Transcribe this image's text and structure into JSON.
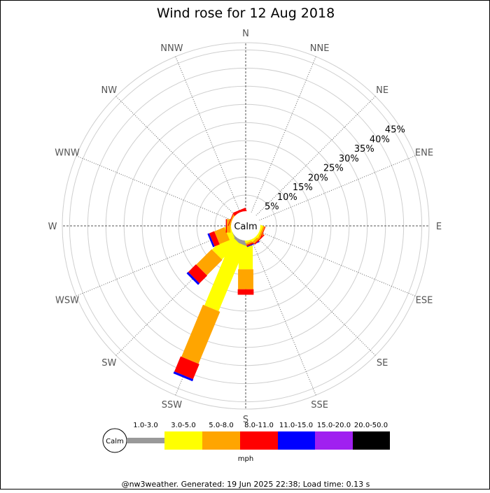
{
  "chart_data": {
    "type": "windrose",
    "title": "Wind rose for 12 Aug 2018",
    "center_label": "Calm",
    "directions": [
      "N",
      "NNE",
      "NE",
      "ENE",
      "E",
      "ESE",
      "SE",
      "SSE",
      "S",
      "SSW",
      "SW",
      "WSW",
      "W",
      "WNW",
      "NW",
      "NNW"
    ],
    "radial_ticks": [
      "5%",
      "10%",
      "15%",
      "20%",
      "25%",
      "30%",
      "35%",
      "40%",
      "45%"
    ],
    "radial_values": [
      5,
      10,
      15,
      20,
      25,
      30,
      35,
      40,
      45
    ],
    "rmax_percent": 47,
    "legend": {
      "calm_label": "Calm",
      "unit": "mph",
      "bins": [
        {
          "label": "1.0-3.0",
          "color": "#999999"
        },
        {
          "label": "3.0-5.0",
          "color": "#ffff00"
        },
        {
          "label": "5.0-8.0",
          "color": "#ffa500"
        },
        {
          "label": "8.0-11.0",
          "color": "#ff0000"
        },
        {
          "label": "11.0-15.0",
          "color": "#0000ff"
        },
        {
          "label": "15.0-20.0",
          "color": "#a020f0"
        },
        {
          "label": "20.0-50.0",
          "color": "#000000"
        }
      ]
    },
    "series": [
      {
        "direction": "S",
        "values": [
          2.0,
          6.5,
          5.5,
          1.5,
          0,
          0,
          0
        ]
      },
      {
        "direction": "SSW",
        "values": [
          1.6,
          19.5,
          15.5,
          4.5,
          0.6,
          0,
          0
        ]
      },
      {
        "direction": "SW",
        "values": [
          1.2,
          6.5,
          6.0,
          3.0,
          0.6,
          0,
          0
        ]
      },
      {
        "direction": "WSW",
        "values": [
          0.6,
          1.5,
          3.0,
          1.5,
          0.5,
          0,
          0
        ]
      },
      {
        "direction": "W",
        "values": [
          0.2,
          0.5,
          1.0,
          0.3,
          0,
          0,
          0
        ]
      },
      {
        "direction": "WNW",
        "values": [
          0.1,
          0.3,
          0.5,
          0.2,
          0,
          0,
          0
        ]
      },
      {
        "direction": "NNW",
        "values": [
          0,
          0.1,
          0.1,
          1.0,
          0,
          0,
          0
        ]
      },
      {
        "direction": "SSE",
        "values": [
          0.2,
          0.8,
          0.5,
          0.4,
          0.2,
          0,
          0
        ]
      },
      {
        "direction": "SE",
        "values": [
          0.2,
          0.8,
          0.7,
          0.3,
          0,
          0,
          0
        ]
      },
      {
        "direction": "ESE",
        "values": [
          0.2,
          0.8,
          0.5,
          0.2,
          0,
          0,
          0
        ]
      }
    ]
  },
  "footer": "@nw3weather. Generated: 19 Jun 2025 22:38; Load time: 0.13 s"
}
